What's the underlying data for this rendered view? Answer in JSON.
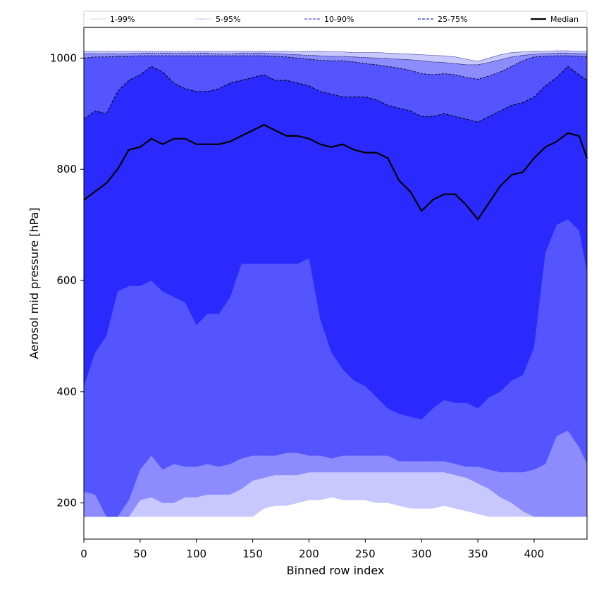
{
  "chart_data": {
    "type": "area",
    "title": "",
    "xlabel": "Binned row index",
    "ylabel": "Aerosol mid pressure [hPa]",
    "xlim": [
      0,
      447
    ],
    "ylim": [
      135,
      1055
    ],
    "xticks": [
      0,
      50,
      100,
      150,
      200,
      250,
      300,
      350,
      400
    ],
    "yticks": [
      200,
      400,
      600,
      800,
      1000
    ],
    "legend_placement": "top (above plot, single row)",
    "legend": [
      {
        "label": "1-99%",
        "color": "#c8c8ff",
        "style": "thin"
      },
      {
        "label": "5-95%",
        "color": "#8c8cff",
        "style": "dotted"
      },
      {
        "label": "10-90%",
        "color": "#5555ff",
        "style": "dashed"
      },
      {
        "label": "25-75%",
        "color": "#2a2aff",
        "style": "dashed"
      },
      {
        "label": "Median",
        "color": "#000000",
        "style": "solid"
      }
    ],
    "colors": {
      "band_1_99": "#c8c8ff",
      "band_5_95": "#8c8cff",
      "band_10_90": "#5555ff",
      "band_25_75": "#2a2aff",
      "median": "#000000"
    },
    "x": [
      0,
      10,
      20,
      30,
      40,
      50,
      60,
      70,
      80,
      90,
      100,
      110,
      120,
      130,
      140,
      150,
      160,
      170,
      180,
      190,
      200,
      210,
      220,
      230,
      240,
      250,
      260,
      270,
      280,
      290,
      300,
      310,
      320,
      330,
      340,
      350,
      360,
      370,
      380,
      390,
      400,
      410,
      420,
      430,
      440,
      447
    ],
    "series": [
      {
        "key": "p1",
        "values": [
          175,
          175,
          175,
          175,
          175,
          175,
          175,
          175,
          175,
          175,
          175,
          175,
          175,
          175,
          175,
          175,
          190,
          195,
          195,
          200,
          205,
          205,
          210,
          205,
          205,
          205,
          200,
          200,
          195,
          190,
          190,
          190,
          195,
          190,
          185,
          180,
          175,
          175,
          175,
          175,
          175,
          175,
          175,
          175,
          175,
          175
        ]
      },
      {
        "key": "p5",
        "values": [
          175,
          175,
          175,
          175,
          175,
          205,
          210,
          200,
          200,
          210,
          210,
          215,
          215,
          215,
          225,
          240,
          245,
          250,
          250,
          250,
          255,
          255,
          255,
          255,
          255,
          255,
          255,
          255,
          255,
          255,
          255,
          255,
          255,
          250,
          245,
          235,
          225,
          210,
          200,
          185,
          175,
          175,
          175,
          175,
          175,
          175
        ]
      },
      {
        "key": "p10",
        "values": [
          220,
          215,
          175,
          175,
          205,
          260,
          285,
          260,
          270,
          265,
          265,
          270,
          265,
          270,
          280,
          285,
          285,
          285,
          290,
          290,
          285,
          285,
          280,
          285,
          285,
          285,
          285,
          285,
          275,
          275,
          275,
          275,
          275,
          270,
          265,
          265,
          260,
          255,
          255,
          255,
          260,
          270,
          320,
          330,
          300,
          270
        ]
      },
      {
        "key": "p25",
        "values": [
          410,
          470,
          500,
          580,
          590,
          590,
          600,
          580,
          570,
          560,
          520,
          540,
          540,
          570,
          630,
          630,
          630,
          630,
          630,
          630,
          640,
          530,
          470,
          440,
          420,
          410,
          390,
          370,
          360,
          355,
          350,
          370,
          385,
          380,
          380,
          370,
          390,
          400,
          420,
          430,
          480,
          650,
          700,
          710,
          690,
          615
        ]
      },
      {
        "key": "p50",
        "values": [
          745,
          760,
          775,
          800,
          835,
          840,
          855,
          845,
          855,
          855,
          845,
          845,
          845,
          850,
          860,
          870,
          880,
          870,
          860,
          860,
          855,
          845,
          840,
          845,
          835,
          830,
          830,
          820,
          780,
          760,
          725,
          745,
          755,
          755,
          735,
          710,
          740,
          770,
          790,
          795,
          820,
          840,
          850,
          865,
          860,
          820
        ]
      },
      {
        "key": "p75",
        "values": [
          890,
          905,
          900,
          940,
          960,
          970,
          985,
          975,
          955,
          945,
          940,
          940,
          945,
          955,
          960,
          965,
          970,
          960,
          960,
          955,
          950,
          940,
          935,
          930,
          930,
          930,
          925,
          915,
          910,
          905,
          895,
          895,
          900,
          895,
          890,
          885,
          895,
          905,
          915,
          920,
          930,
          950,
          965,
          985,
          970,
          960
        ]
      },
      {
        "key": "p90",
        "values": [
          1000,
          1002,
          1002,
          1003,
          1003,
          1004,
          1004,
          1004,
          1004,
          1004,
          1004,
          1004,
          1004,
          1004,
          1004,
          1004,
          1004,
          1003,
          1002,
          1000,
          998,
          996,
          995,
          995,
          993,
          990,
          988,
          985,
          982,
          978,
          972,
          970,
          972,
          970,
          965,
          962,
          968,
          975,
          985,
          995,
          1002,
          1003,
          1004,
          1004,
          1003,
          1002
        ]
      },
      {
        "key": "p95",
        "values": [
          1008,
          1008,
          1008,
          1008,
          1008,
          1009,
          1009,
          1009,
          1009,
          1009,
          1009,
          1009,
          1008,
          1008,
          1009,
          1009,
          1009,
          1008,
          1007,
          1006,
          1005,
          1004,
          1003,
          1003,
          1002,
          1001,
          1000,
          999,
          998,
          997,
          995,
          993,
          992,
          990,
          988,
          988,
          992,
          997,
          1002,
          1005,
          1007,
          1008,
          1009,
          1009,
          1008,
          1008
        ]
      },
      {
        "key": "p99",
        "values": [
          1012,
          1012,
          1012,
          1012,
          1012,
          1012,
          1012,
          1012,
          1012,
          1012,
          1012,
          1012,
          1012,
          1012,
          1012,
          1012,
          1012,
          1012,
          1012,
          1011,
          1012,
          1012,
          1011,
          1011,
          1010,
          1010,
          1010,
          1009,
          1008,
          1007,
          1006,
          1005,
          1004,
          1002,
          998,
          994,
          1000,
          1006,
          1010,
          1011,
          1012,
          1012,
          1013,
          1013,
          1012,
          1012
        ]
      }
    ]
  }
}
